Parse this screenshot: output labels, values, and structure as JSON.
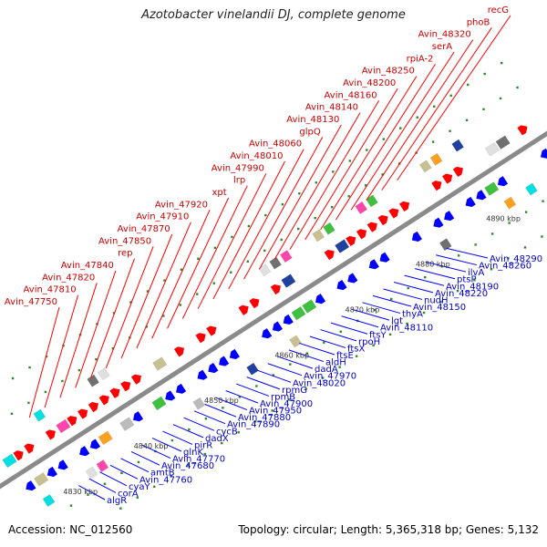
{
  "title": "Azotobacter vinelandii DJ, complete genome",
  "footer": {
    "accession": "Accession: NC_012560",
    "topology": "Topology: circular; Length: 5,365,318 bp; Genes: 5,132"
  },
  "ticks": [
    "4830 kbp",
    "4840 kbp",
    "4850 kbp",
    "4860 kbp",
    "4870 kbp",
    "4880 kbp",
    "4890 kbp",
    "4900 kbp"
  ],
  "labels_top": [
    "recG",
    "phoB",
    "Avin_48320",
    "serA",
    "rpiA-2",
    "Avin_48250",
    "Avin_48200",
    "Avin_48160",
    "Avin_48140",
    "Avin_48130",
    "glpQ",
    "Avin_48060",
    "Avin_48010",
    "Avin_47990",
    "lrp",
    "xpt",
    "Avin_47920",
    "Avin_47910",
    "Avin_47870",
    "Avin_47850",
    "rep",
    "Avin_47840",
    "Avin_47820",
    "Avin_47810",
    "Avin_47750"
  ],
  "labels_bottom": [
    "Avin_48290",
    "Avin_48260",
    "ilvA",
    "ptsP",
    "Avin_48190",
    "Avin_48220",
    "nudH",
    "Avin_48150",
    "thyA",
    "lgt",
    "Avin_48110",
    "ftsY",
    "rpoH",
    "ftsX",
    "ftsE",
    "aldH",
    "dadA",
    "Avin_47970",
    "Avin_48020",
    "rpmG",
    "rpmB",
    "Avin_47900",
    "Avin_47950",
    "Avin_47880",
    "Avin_47890",
    "cycB",
    "dadX",
    "pirR",
    "glnK",
    "Avin_47770",
    "Avin_47680",
    "amtB",
    "Avin_47760",
    "cyaY",
    "corA",
    "algR"
  ],
  "colors": {
    "forward": "#ff0000",
    "reverse": "#0000ff",
    "label_top": "#cc0000",
    "label_bottom": "#0000cc",
    "backbone": "#8a8a8a"
  }
}
